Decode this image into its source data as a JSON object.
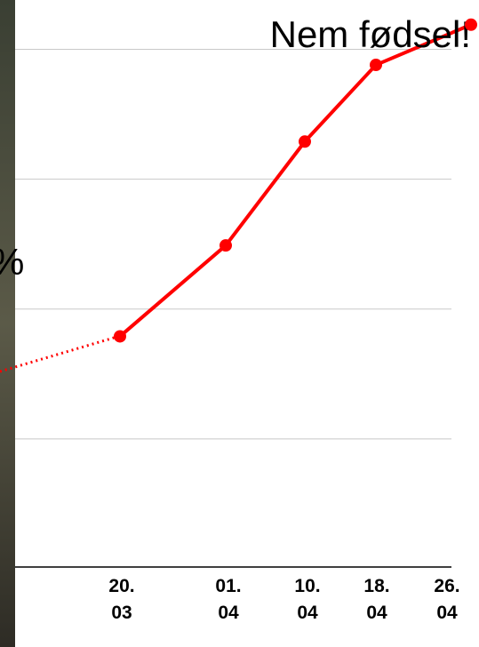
{
  "chart_data": {
    "type": "line",
    "title": "Nem fødsel!",
    "annotation": "%",
    "categories": [
      "20.\n03",
      "01.\n04",
      "10.\n04",
      "18.\n04",
      "26.\n04"
    ],
    "series": [
      {
        "color": "#ff0000",
        "values": [
          1.79,
          2.49,
          3.29,
          3.88,
          4.19
        ]
      }
    ],
    "ylim": [
      0,
      4.38
    ],
    "yticks": [
      1,
      2,
      3,
      4
    ],
    "grid": true
  }
}
